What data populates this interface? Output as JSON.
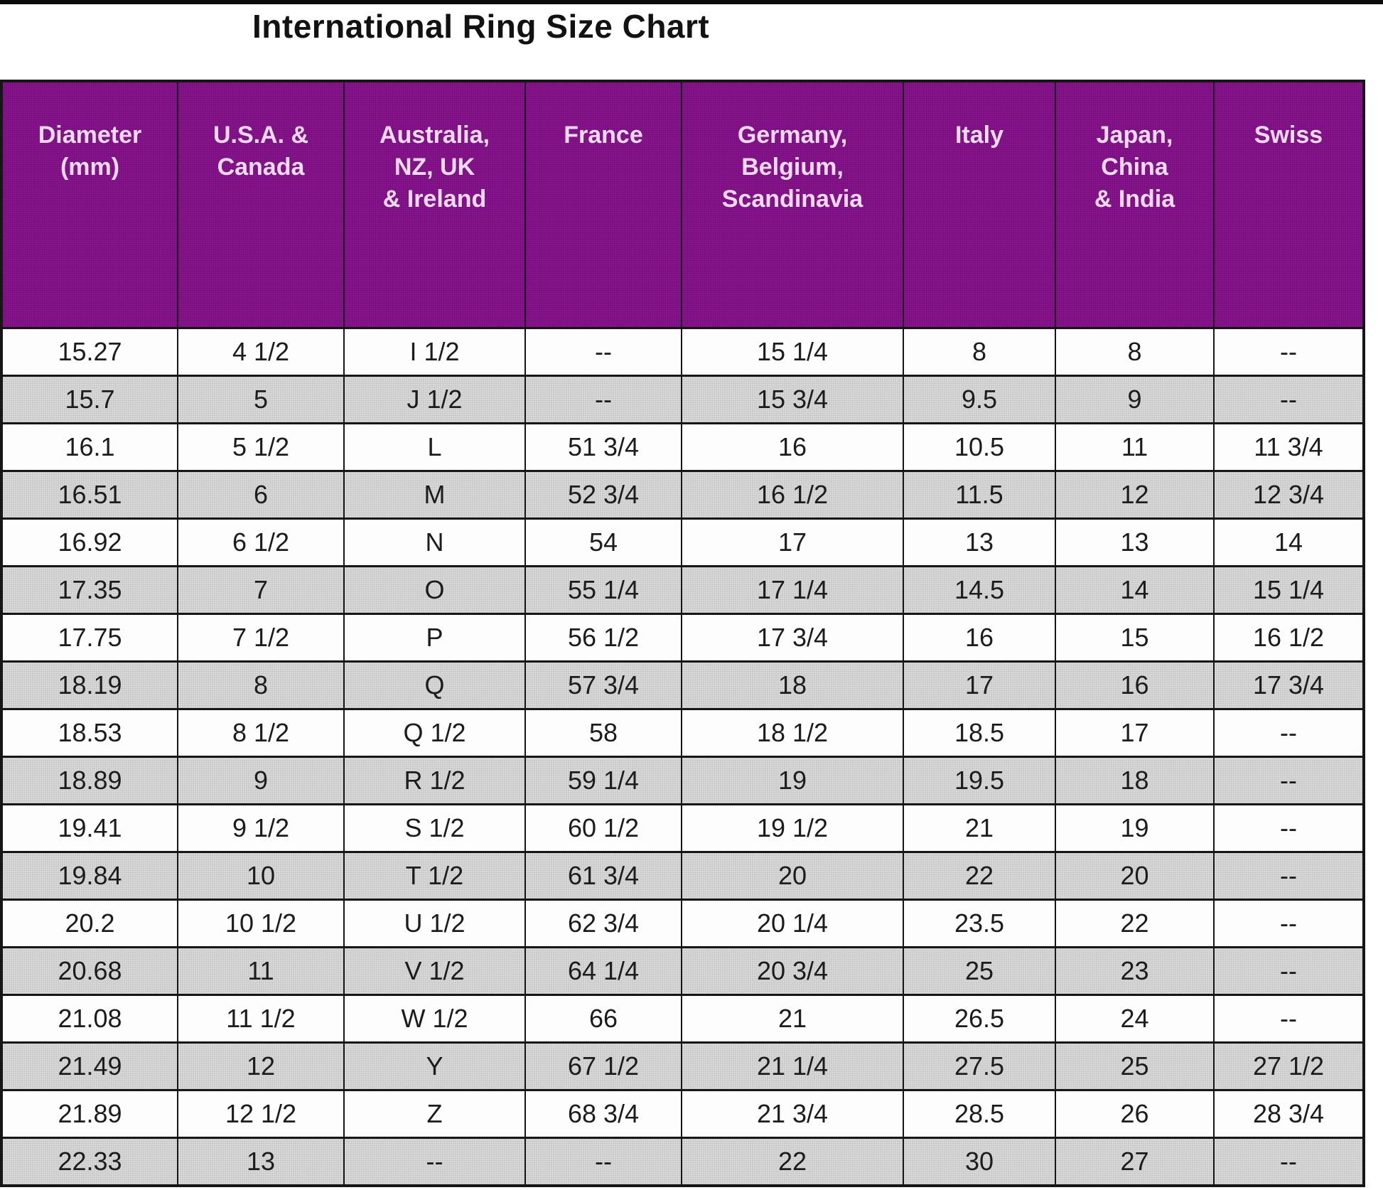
{
  "title": "International Ring Size Chart",
  "colors": {
    "header_bg": "#8a1390",
    "header_text": "#f2dcf2",
    "row_bg": "#fdfdfd",
    "row_alt_bg": "#c9c9c9",
    "border": "#161616",
    "title_text": "#121212"
  },
  "chart_data": {
    "type": "table",
    "title": "International Ring Size Chart",
    "columns": [
      "Diameter\n(mm)",
      "U.S.A. &\nCanada",
      "Australia,\nNZ, UK\n& Ireland",
      "France",
      "Germany,\nBelgium,\nScandinavia",
      "Italy",
      "Japan,\nChina\n& India",
      "Swiss"
    ],
    "rows": [
      [
        "15.27",
        "4 1/2",
        "I 1/2",
        "--",
        "15 1/4",
        "8",
        "8",
        "--"
      ],
      [
        "15.7",
        "5",
        "J 1/2",
        "--",
        "15 3/4",
        "9.5",
        "9",
        "--"
      ],
      [
        "16.1",
        "5 1/2",
        "L",
        "51 3/4",
        "16",
        "10.5",
        "11",
        "11 3/4"
      ],
      [
        "16.51",
        "6",
        "M",
        "52 3/4",
        "16 1/2",
        "11.5",
        "12",
        "12 3/4"
      ],
      [
        "16.92",
        "6 1/2",
        "N",
        "54",
        "17",
        "13",
        "13",
        "14"
      ],
      [
        "17.35",
        "7",
        "O",
        "55 1/4",
        "17 1/4",
        "14.5",
        "14",
        "15 1/4"
      ],
      [
        "17.75",
        "7 1/2",
        "P",
        "56 1/2",
        "17 3/4",
        "16",
        "15",
        "16 1/2"
      ],
      [
        "18.19",
        "8",
        "Q",
        "57 3/4",
        "18",
        "17",
        "16",
        "17 3/4"
      ],
      [
        "18.53",
        "8 1/2",
        "Q 1/2",
        "58",
        "18 1/2",
        "18.5",
        "17",
        "--"
      ],
      [
        "18.89",
        "9",
        "R 1/2",
        "59 1/4",
        "19",
        "19.5",
        "18",
        "--"
      ],
      [
        "19.41",
        "9 1/2",
        "S 1/2",
        "60 1/2",
        "19 1/2",
        "21",
        "19",
        "--"
      ],
      [
        "19.84",
        "10",
        "T 1/2",
        "61 3/4",
        "20",
        "22",
        "20",
        "--"
      ],
      [
        "20.2",
        "10 1/2",
        "U 1/2",
        "62 3/4",
        "20 1/4",
        "23.5",
        "22",
        "--"
      ],
      [
        "20.68",
        "11",
        "V 1/2",
        "64 1/4",
        "20 3/4",
        "25",
        "23",
        "--"
      ],
      [
        "21.08",
        "11 1/2",
        "W 1/2",
        "66",
        "21",
        "26.5",
        "24",
        "--"
      ],
      [
        "21.49",
        "12",
        "Y",
        "67 1/2",
        "21 1/4",
        "27.5",
        "25",
        "27 1/2"
      ],
      [
        "21.89",
        "12 1/2",
        "Z",
        "68 3/4",
        "21 3/4",
        "28.5",
        "26",
        "28 3/4"
      ],
      [
        "22.33",
        "13",
        "--",
        "--",
        "22",
        "30",
        "27",
        "--"
      ]
    ]
  }
}
